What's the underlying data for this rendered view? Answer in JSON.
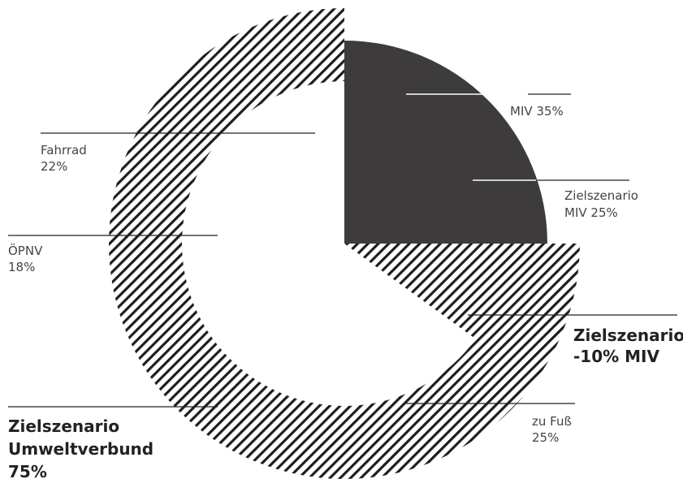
{
  "chart_data": {
    "type": "pie",
    "slices": [
      {
        "name": "MIV",
        "value": 35
      },
      {
        "name": "zu Fuß",
        "value": 25
      },
      {
        "name": "ÖPNV",
        "value": 18
      },
      {
        "name": "Fahrrad",
        "value": 22
      }
    ],
    "target_scenario": {
      "miv": 25,
      "reduction_miv": -10,
      "umweltverbund": 75
    },
    "labels": {
      "miv": [
        "MIV 35%"
      ],
      "miv_target": [
        "Zielszenario",
        "MIV 25%"
      ],
      "reduction": [
        "Zielszenario",
        "-10% MIV"
      ],
      "fuss": [
        "zu Fuß",
        "25%"
      ],
      "oepnv": [
        "ÖPNV",
        "18%"
      ],
      "fahrrad": [
        "Fahrrad",
        "22%"
      ],
      "umweltverbund": [
        "Zielszenario",
        "Umweltverbund",
        "75%"
      ]
    },
    "colors": {
      "miv_fill": "#3d3b3c",
      "hatch": "#1e1e1e",
      "background": "#ffffff"
    }
  }
}
